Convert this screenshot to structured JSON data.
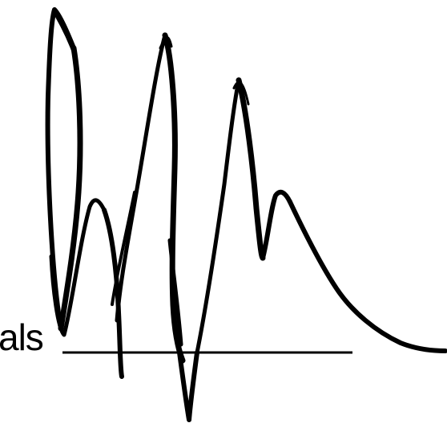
{
  "label": {
    "text": "als"
  },
  "colors": {
    "ink": "#000000",
    "background": "#ffffff"
  }
}
